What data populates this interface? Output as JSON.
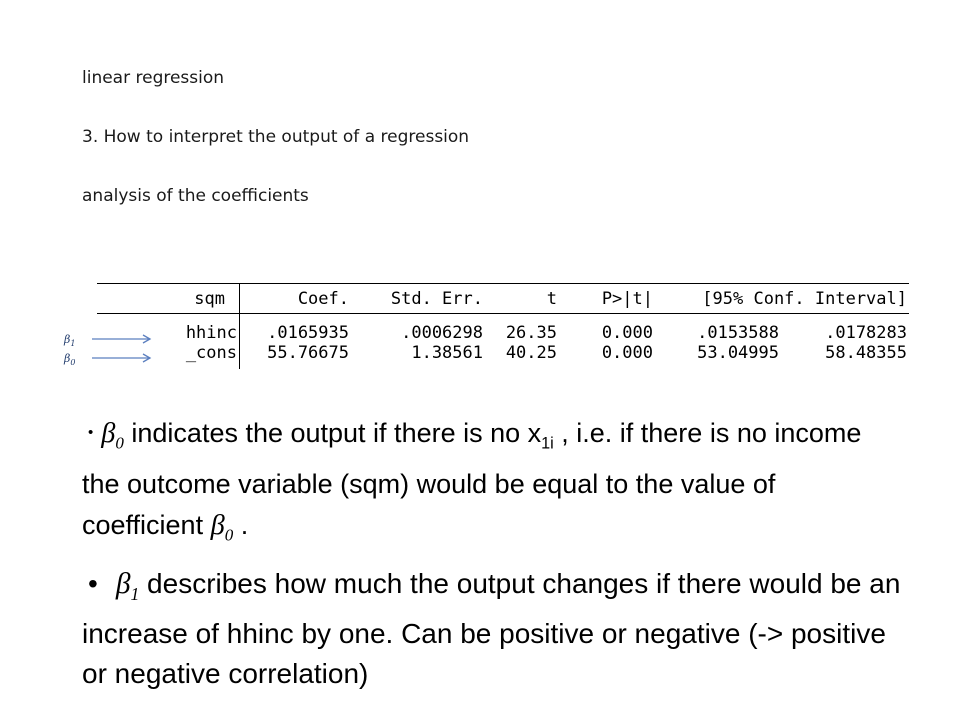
{
  "header": {
    "line1": "linear regression",
    "line2": "3. How to interpret the output of a regression",
    "line3": "analysis of the coefficients"
  },
  "table": {
    "columns": [
      "sqm",
      "Coef.",
      "Std. Err.",
      "t",
      "P>|t|",
      "[95% Conf. Interval]"
    ],
    "rows": [
      {
        "name": "hhinc",
        "coef": ".0165935",
        "se": ".0006298",
        "t": "26.35",
        "p": "0.000",
        "ci_low": ".0153588",
        "ci_high": ".0178283"
      },
      {
        "name": "_cons",
        "coef": "55.76675",
        "se": "1.38561",
        "t": "40.25",
        "p": "0.000",
        "ci_low": "53.04995",
        "ci_high": "58.48355"
      }
    ]
  },
  "annotations": {
    "beta1": {
      "symbol": "β",
      "sub": "1"
    },
    "beta0": {
      "symbol": "β",
      "sub": "0"
    },
    "arrow_color": "#5b7fbf"
  },
  "bullets": {
    "b1": {
      "bullet": "•",
      "symbol": "β",
      "symbol_sub": "0",
      "text1": "  indicates the output if there is no x",
      "x_sub": "1i",
      "text2": " , i.e. if there is no income the  outcome variable  (sqm) would be equal to the value of coefficient ",
      "symbol2": "β",
      "symbol2_sub": "0",
      "text3": " ."
    },
    "b2": {
      "bullet": "•",
      "symbol": "β",
      "symbol_sub": "1",
      "text1": " describes how much the output changes if there would be an increase of hhinc by one. Can be positive or negative  (-> positive or negative  correlation)"
    }
  }
}
